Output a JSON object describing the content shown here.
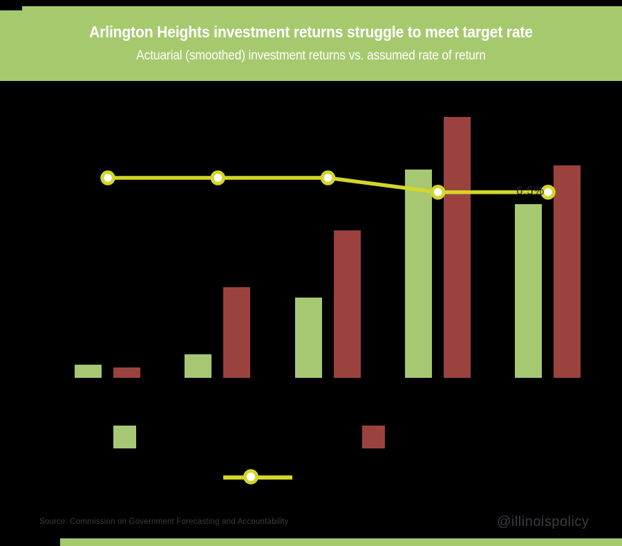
{
  "header": {
    "title": "Arlington Heights investment returns struggle to meet target rate",
    "subtitle": "Actuarial (smoothed) investment returns vs. assumed rate of return"
  },
  "chart_data": {
    "type": "bar",
    "title": "Arlington Heights investment returns struggle to meet target rate",
    "subtitle": "Actuarial (smoothed) investment returns vs. assumed rate of return",
    "groups": 5,
    "x_tick_labels_visible": false,
    "ylabel": "",
    "ylim": [
      0,
      11
    ],
    "grid": false,
    "series": [
      {
        "name": "returns-green-bars",
        "type": "bar",
        "color": "#a6c873",
        "values": [
          0.47,
          0.84,
          2.82,
          7.29,
          6.09
        ]
      },
      {
        "name": "returns-red-bars",
        "type": "bar",
        "color": "#9b423f",
        "values": [
          0.37,
          3.18,
          5.16,
          9.13,
          7.43
        ]
      },
      {
        "name": "assumed-rate-of-return-line",
        "type": "line",
        "color": "#d3d62a",
        "values": [
          7.0,
          7.0,
          7.0,
          6.5,
          6.5
        ]
      }
    ],
    "annotation": {
      "text": "6.5%"
    },
    "legend_position": "bottom"
  },
  "legend": {
    "swatches": [
      {
        "name": "green-series-swatch",
        "color": "#a6c873"
      },
      {
        "name": "red-series-swatch",
        "color": "#9b423f"
      }
    ],
    "line_sample": {
      "color": "#d3d62a"
    }
  },
  "footer": {
    "source": "Source: Commission on Government Forecasting and Accountability",
    "handle": "@illinoispolicy"
  },
  "colors": {
    "background": "#000000",
    "banner": "#a6c96e",
    "bottom_strip": "#a6c96e",
    "header_text": "#ffffff",
    "line": "#d3d62a",
    "marker_fill": "#ffffff",
    "annotation_text": "#2a2a2e",
    "source_text": "#3d3d3d",
    "handle_text": "#3c3c44"
  }
}
